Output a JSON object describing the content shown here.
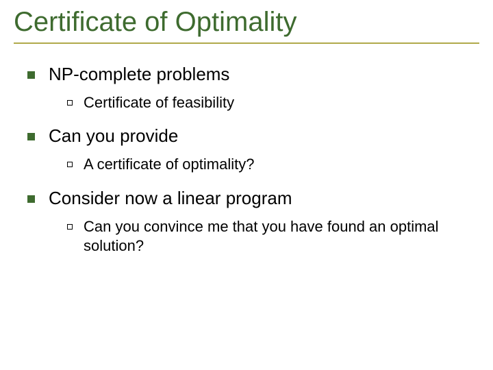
{
  "title": "Certificate of Optimality",
  "title_color": "#3e6b2f",
  "title_underline_color": "#b0a94a",
  "bullet_l1_color": "#3e6b2f",
  "background_color": "#ffffff",
  "font_family": "Comic Sans MS",
  "title_fontsize": 40,
  "l1_fontsize": 26,
  "l2_fontsize": 22,
  "items": [
    {
      "label": "NP-complete problems",
      "sub": [
        {
          "label": "Certificate of feasibility"
        }
      ]
    },
    {
      "label": "Can you provide",
      "sub": [
        {
          "label": "A certificate of optimality?"
        }
      ]
    },
    {
      "label": "Consider now a linear program",
      "sub": [
        {
          "label": "Can you convince me that you have found an optimal solution?"
        }
      ]
    }
  ]
}
